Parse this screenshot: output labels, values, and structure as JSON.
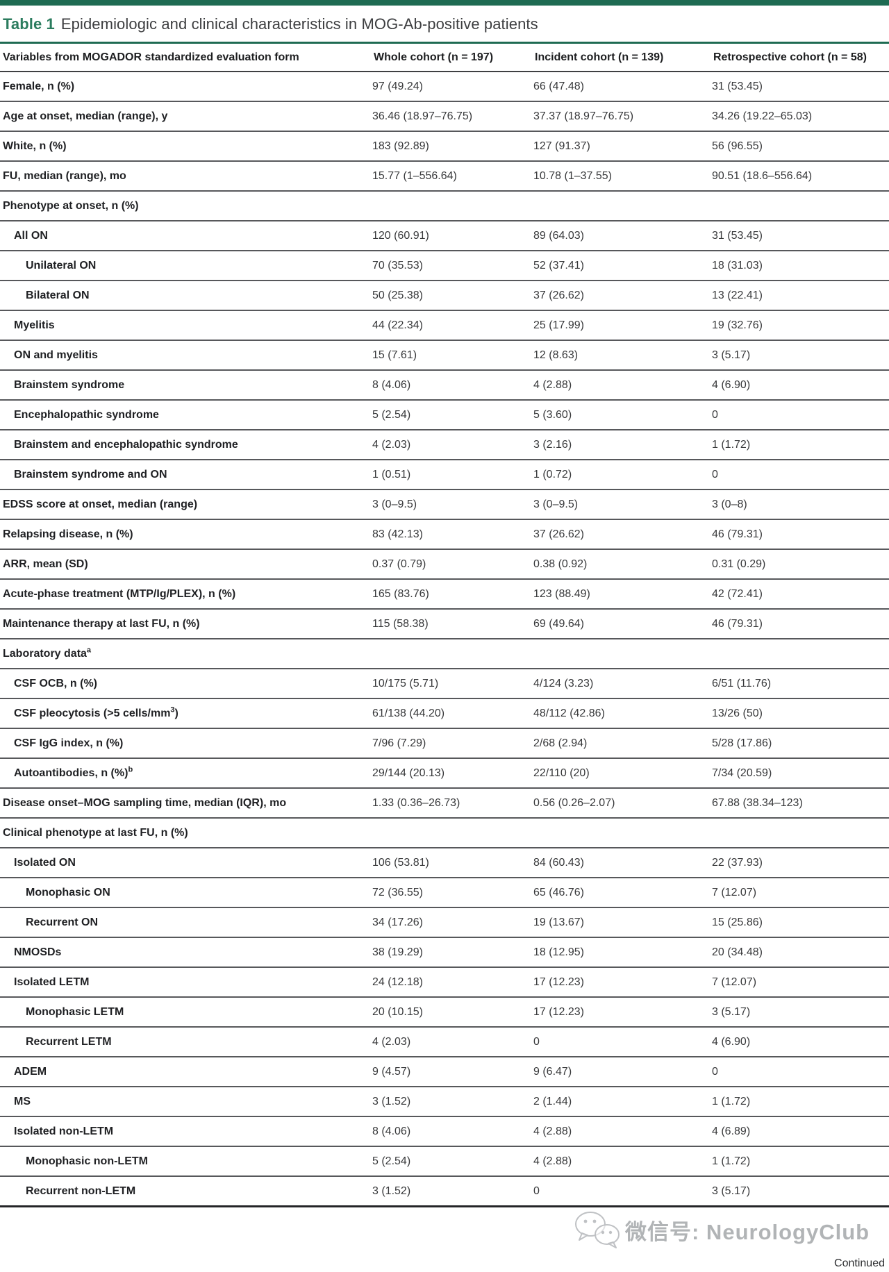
{
  "title": {
    "label": "Table 1",
    "text": "Epidemiologic and clinical characteristics in MOG-Ab-positive patients"
  },
  "colors": {
    "accent": "#1e6b52",
    "title_accent": "#2b7c5e"
  },
  "table": {
    "columns": [
      "Variables from MOGADOR standardized evaluation form",
      "Whole cohort (n = 197)",
      "Incident cohort (n = 139)",
      "Retrospective cohort (n = 58)"
    ],
    "rows": [
      {
        "label": "Female, n (%)",
        "indent": 0,
        "section": false,
        "values": [
          "97 (49.24)",
          "66 (47.48)",
          "31 (53.45)"
        ]
      },
      {
        "label": "Age at onset, median (range), y",
        "indent": 0,
        "section": false,
        "values": [
          "36.46 (18.97–76.75)",
          "37.37 (18.97–76.75)",
          "34.26 (19.22–65.03)"
        ]
      },
      {
        "label": "White, n (%)",
        "indent": 0,
        "section": false,
        "values": [
          "183 (92.89)",
          "127 (91.37)",
          "56 (96.55)"
        ]
      },
      {
        "label": "FU, median (range), mo",
        "indent": 0,
        "section": false,
        "values": [
          "15.77 (1–556.64)",
          "10.78 (1–37.55)",
          "90.51 (18.6–556.64)"
        ]
      },
      {
        "label": "Phenotype at onset, n (%)",
        "indent": 0,
        "section": true,
        "values": [
          "",
          "",
          ""
        ]
      },
      {
        "label": "All ON",
        "indent": 1,
        "section": false,
        "values": [
          "120 (60.91)",
          "89 (64.03)",
          "31 (53.45)"
        ]
      },
      {
        "label": "Unilateral ON",
        "indent": 2,
        "section": false,
        "values": [
          "70 (35.53)",
          "52 (37.41)",
          "18 (31.03)"
        ]
      },
      {
        "label": "Bilateral ON",
        "indent": 2,
        "section": false,
        "values": [
          "50 (25.38)",
          "37 (26.62)",
          "13 (22.41)"
        ]
      },
      {
        "label": "Myelitis",
        "indent": 1,
        "section": false,
        "values": [
          "44 (22.34)",
          "25 (17.99)",
          "19 (32.76)"
        ]
      },
      {
        "label": "ON and myelitis",
        "indent": 1,
        "section": false,
        "values": [
          "15 (7.61)",
          "12 (8.63)",
          "3 (5.17)"
        ]
      },
      {
        "label": "Brainstem syndrome",
        "indent": 1,
        "section": false,
        "values": [
          "8 (4.06)",
          "4 (2.88)",
          "4 (6.90)"
        ]
      },
      {
        "label": "Encephalopathic syndrome",
        "indent": 1,
        "section": false,
        "values": [
          "5 (2.54)",
          "5 (3.60)",
          "0"
        ]
      },
      {
        "label": "Brainstem and encephalopathic syndrome",
        "indent": 1,
        "section": false,
        "values": [
          "4 (2.03)",
          "3 (2.16)",
          "1 (1.72)"
        ]
      },
      {
        "label": "Brainstem syndrome and ON",
        "indent": 1,
        "section": false,
        "values": [
          "1 (0.51)",
          "1 (0.72)",
          "0"
        ]
      },
      {
        "label": "EDSS score at onset, median (range)",
        "indent": 0,
        "section": false,
        "values": [
          "3 (0–9.5)",
          "3 (0–9.5)",
          "3 (0–8)"
        ]
      },
      {
        "label": "Relapsing disease, n (%)",
        "indent": 0,
        "section": false,
        "values": [
          "83 (42.13)",
          "37 (26.62)",
          "46 (79.31)"
        ]
      },
      {
        "label": "ARR, mean (SD)",
        "indent": 0,
        "section": false,
        "values": [
          "0.37 (0.79)",
          "0.38 (0.92)",
          "0.31 (0.29)"
        ]
      },
      {
        "label": "Acute-phase treatment (MTP/Ig/PLEX), n (%)",
        "indent": 0,
        "section": false,
        "values": [
          "165 (83.76)",
          "123 (88.49)",
          "42 (72.41)"
        ]
      },
      {
        "label": "Maintenance therapy at last FU, n (%)",
        "indent": 0,
        "section": false,
        "values": [
          "115 (58.38)",
          "69 (49.64)",
          "46 (79.31)"
        ]
      },
      {
        "label": "Laboratory data^{a}",
        "indent": 0,
        "section": true,
        "values": [
          "",
          "",
          ""
        ]
      },
      {
        "label": "CSF OCB, n (%)",
        "indent": 1,
        "section": false,
        "values": [
          "10/175 (5.71)",
          "4/124 (3.23)",
          "6/51 (11.76)"
        ]
      },
      {
        "label": "CSF pleocytosis (>5 cells/mm^{3})",
        "indent": 1,
        "section": false,
        "values": [
          "61/138 (44.20)",
          "48/112 (42.86)",
          "13/26 (50)"
        ]
      },
      {
        "label": "CSF IgG index, n (%)",
        "indent": 1,
        "section": false,
        "values": [
          "7/96 (7.29)",
          "2/68 (2.94)",
          "5/28 (17.86)"
        ]
      },
      {
        "label": "Autoantibodies, n (%)^{b}",
        "indent": 1,
        "section": false,
        "values": [
          "29/144 (20.13)",
          "22/110 (20)",
          "7/34 (20.59)"
        ]
      },
      {
        "label": "Disease onset–MOG sampling time, median (IQR), mo",
        "indent": 0,
        "section": false,
        "values": [
          "1.33 (0.36–26.73)",
          "0.56 (0.26–2.07)",
          "67.88 (38.34–123)"
        ]
      },
      {
        "label": "Clinical phenotype at last FU, n (%)",
        "indent": 0,
        "section": true,
        "values": [
          "",
          "",
          ""
        ]
      },
      {
        "label": "Isolated ON",
        "indent": 1,
        "section": false,
        "values": [
          "106 (53.81)",
          "84 (60.43)",
          "22 (37.93)"
        ]
      },
      {
        "label": "Monophasic ON",
        "indent": 2,
        "section": false,
        "values": [
          "72 (36.55)",
          "65 (46.76)",
          "7 (12.07)"
        ]
      },
      {
        "label": "Recurrent ON",
        "indent": 2,
        "section": false,
        "values": [
          "34 (17.26)",
          "19 (13.67)",
          "15 (25.86)"
        ]
      },
      {
        "label": "NMOSDs",
        "indent": 1,
        "section": false,
        "values": [
          "38 (19.29)",
          "18 (12.95)",
          "20 (34.48)"
        ]
      },
      {
        "label": "Isolated LETM",
        "indent": 1,
        "section": false,
        "values": [
          "24 (12.18)",
          "17 (12.23)",
          "7 (12.07)"
        ]
      },
      {
        "label": "Monophasic LETM",
        "indent": 2,
        "section": false,
        "values": [
          "20 (10.15)",
          "17 (12.23)",
          "3 (5.17)"
        ]
      },
      {
        "label": "Recurrent LETM",
        "indent": 2,
        "section": false,
        "values": [
          "4 (2.03)",
          "0",
          "4 (6.90)"
        ]
      },
      {
        "label": "ADEM",
        "indent": 1,
        "section": false,
        "values": [
          "9 (4.57)",
          "9 (6.47)",
          "0"
        ]
      },
      {
        "label": "MS",
        "indent": 1,
        "section": false,
        "values": [
          "3 (1.52)",
          "2 (1.44)",
          "1 (1.72)"
        ]
      },
      {
        "label": "Isolated non-LETM",
        "indent": 1,
        "section": false,
        "values": [
          "8 (4.06)",
          "4 (2.88)",
          "4 (6.89)"
        ]
      },
      {
        "label": "Monophasic non-LETM",
        "indent": 2,
        "section": false,
        "values": [
          "5 (2.54)",
          "4 (2.88)",
          "1 (1.72)"
        ]
      },
      {
        "label": "Recurrent non-LETM",
        "indent": 2,
        "section": false,
        "values": [
          "3 (1.52)",
          "0",
          "3 (5.17)"
        ]
      }
    ]
  },
  "watermark": {
    "icon": "wechat-icon",
    "text": "微信号: NeurologyClub"
  },
  "footer": {
    "continued": "Continued"
  }
}
